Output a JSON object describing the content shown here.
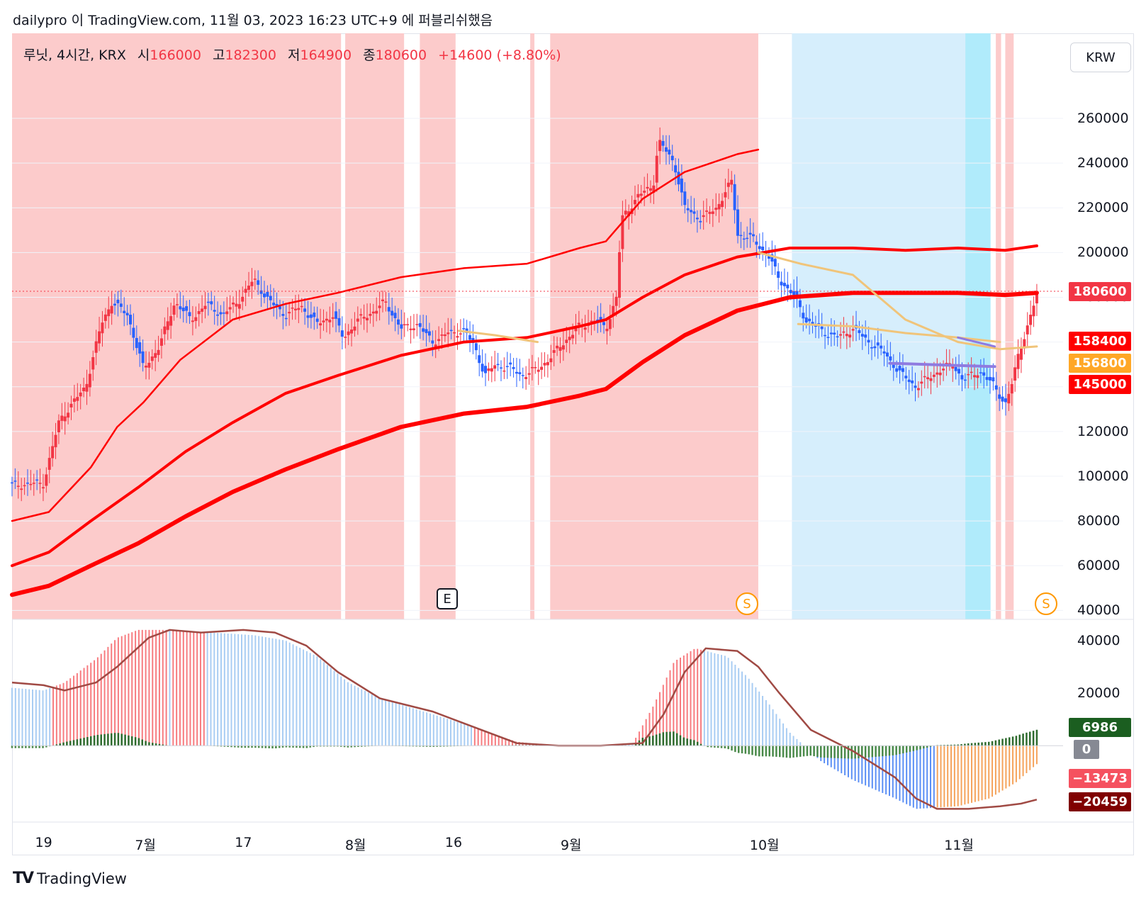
{
  "header": {
    "published": "dailypro 이 TradingView.com, 11월 03, 2023 16:23 UTC+9 에 퍼블리쉬했음",
    "symbol": "루닛, 4시간, KRX",
    "open_label": "시",
    "open": "166000",
    "high_label": "고",
    "high": "182300",
    "low_label": "저",
    "low": "164900",
    "close_label": "종",
    "close": "180600",
    "change": "+14600 (+8.80%)"
  },
  "currency": "KRW",
  "brand": "TradingView",
  "markers": {
    "earnings": "E",
    "split": "S"
  },
  "colors": {
    "up": "#f23645",
    "down": "#2962ff",
    "bg_red": "#fccbcb",
    "bg_blue": "#d6eefc",
    "bg_cyan": "#b0ebfb",
    "ma": "#ff0000",
    "ma_slow_gold": "#f0c47a",
    "ma_purple": "#8f7be0",
    "signal": "#a04a44",
    "hist_pos": "#2e6b2e",
    "hist_neg": "#4a8a4a"
  },
  "chart_data": [
    {
      "type": "candlestick",
      "title": "루닛, 4시간, KRX",
      "x_ticks": [
        "19",
        "7월",
        "17",
        "8월",
        "16",
        "9월",
        "10월",
        "11월"
      ],
      "y_ticks": [
        "40000",
        "60000",
        "80000",
        "100000",
        "120000",
        "140000",
        "160000",
        "180000",
        "200000",
        "220000",
        "240000",
        "260000"
      ],
      "ylim": [
        36000,
        298000
      ],
      "last_price": "180600",
      "price_labels": [
        {
          "value": "180600",
          "color": "#f23645"
        },
        {
          "value": "158400",
          "color": "#ff0000"
        },
        {
          "value": "156800",
          "color": "#ffa726"
        },
        {
          "value": "145000",
          "color": "#ff0000"
        }
      ],
      "close_path": [
        [
          0,
          96000
        ],
        [
          0.03,
          97000
        ],
        [
          0.045,
          125000
        ],
        [
          0.07,
          140000
        ],
        [
          0.085,
          168000
        ],
        [
          0.095,
          178000
        ],
        [
          0.11,
          172000
        ],
        [
          0.125,
          148000
        ],
        [
          0.14,
          158000
        ],
        [
          0.155,
          178000
        ],
        [
          0.17,
          170000
        ],
        [
          0.185,
          177000
        ],
        [
          0.2,
          172000
        ],
        [
          0.215,
          178000
        ],
        [
          0.23,
          188000
        ],
        [
          0.245,
          178000
        ],
        [
          0.26,
          172000
        ],
        [
          0.275,
          176000
        ],
        [
          0.29,
          168000
        ],
        [
          0.305,
          172000
        ],
        [
          0.315,
          162000
        ],
        [
          0.33,
          170000
        ],
        [
          0.345,
          174000
        ],
        [
          0.355,
          178000
        ],
        [
          0.37,
          166000
        ],
        [
          0.385,
          168000
        ],
        [
          0.4,
          160000
        ],
        [
          0.415,
          164000
        ],
        [
          0.43,
          165000
        ],
        [
          0.44,
          158000
        ],
        [
          0.45,
          145000
        ],
        [
          0.46,
          150000
        ],
        [
          0.475,
          148000
        ],
        [
          0.485,
          145000
        ],
        [
          0.5,
          148000
        ],
        [
          0.51,
          152000
        ],
        [
          0.525,
          160000
        ],
        [
          0.54,
          167000
        ],
        [
          0.555,
          170000
        ],
        [
          0.565,
          166000
        ],
        [
          0.575,
          180000
        ],
        [
          0.58,
          215000
        ],
        [
          0.595,
          225000
        ],
        [
          0.61,
          230000
        ],
        [
          0.615,
          250000
        ],
        [
          0.63,
          240000
        ],
        [
          0.64,
          220000
        ],
        [
          0.655,
          215000
        ],
        [
          0.67,
          220000
        ],
        [
          0.685,
          232000
        ],
        [
          0.69,
          208000
        ],
        [
          0.705,
          206000
        ],
        [
          0.72,
          198000
        ],
        [
          0.73,
          188000
        ],
        [
          0.745,
          180000
        ],
        [
          0.755,
          170000
        ],
        [
          0.77,
          165000
        ],
        [
          0.785,
          162000
        ],
        [
          0.8,
          166000
        ],
        [
          0.815,
          160000
        ],
        [
          0.83,
          155000
        ],
        [
          0.845,
          146000
        ],
        [
          0.86,
          140000
        ],
        [
          0.875,
          145000
        ],
        [
          0.885,
          148000
        ],
        [
          0.895,
          150000
        ],
        [
          0.905,
          143000
        ],
        [
          0.92,
          147000
        ],
        [
          0.935,
          140000
        ],
        [
          0.945,
          132000
        ],
        [
          0.952,
          142000
        ],
        [
          0.958,
          156000
        ],
        [
          0.965,
          165000
        ],
        [
          0.975,
          181000
        ]
      ],
      "background_regions": [
        {
          "from": 0.0,
          "to": 0.313,
          "color": "bg_red"
        },
        {
          "from": 0.317,
          "to": 0.373,
          "color": "bg_red"
        },
        {
          "from": 0.388,
          "to": 0.422,
          "color": "bg_red"
        },
        {
          "from": 0.493,
          "to": 0.497,
          "color": "bg_red"
        },
        {
          "from": 0.512,
          "to": 0.71,
          "color": "bg_red"
        },
        {
          "from": 0.742,
          "to": 0.907,
          "color": "bg_blue"
        },
        {
          "from": 0.907,
          "to": 0.931,
          "color": "bg_cyan"
        },
        {
          "from": 0.936,
          "to": 0.941,
          "color": "bg_red"
        },
        {
          "from": 0.945,
          "to": 0.953,
          "color": "bg_red"
        }
      ],
      "series": [
        {
          "color": "#ff0000",
          "width": 2.5,
          "values": [
            [
              0,
              80000
            ],
            [
              0.035,
              84000
            ],
            [
              0.075,
              104000
            ],
            [
              0.1,
              122000
            ],
            [
              0.125,
              133000
            ],
            [
              0.16,
              152000
            ],
            [
              0.21,
              170000
            ],
            [
              0.26,
              177000
            ],
            [
              0.31,
              182000
            ],
            [
              0.37,
              189000
            ],
            [
              0.43,
              193000
            ],
            [
              0.49,
              195000
            ],
            [
              0.54,
              202000
            ],
            [
              0.565,
              205000
            ],
            [
              0.6,
              224000
            ],
            [
              0.64,
              236000
            ],
            [
              0.69,
              244000
            ],
            [
              0.71,
              246000
            ]
          ]
        },
        {
          "color": "#ff0000",
          "width": 4,
          "values": [
            [
              0,
              60000
            ],
            [
              0.035,
              66000
            ],
            [
              0.075,
              80000
            ],
            [
              0.12,
              95000
            ],
            [
              0.165,
              111000
            ],
            [
              0.21,
              124000
            ],
            [
              0.26,
              137000
            ],
            [
              0.31,
              145000
            ],
            [
              0.37,
              154000
            ],
            [
              0.43,
              160000
            ],
            [
              0.49,
              162000
            ],
            [
              0.54,
              167000
            ],
            [
              0.565,
              170000
            ],
            [
              0.6,
              180000
            ],
            [
              0.64,
              190000
            ],
            [
              0.69,
              198000
            ],
            [
              0.74,
              202000
            ],
            [
              0.8,
              202000
            ],
            [
              0.85,
              201000
            ],
            [
              0.9,
              202000
            ],
            [
              0.945,
              201000
            ],
            [
              0.975,
              203000
            ]
          ]
        },
        {
          "color": "#ff0000",
          "width": 6,
          "values": [
            [
              0,
              47000
            ],
            [
              0.035,
              51000
            ],
            [
              0.075,
              60000
            ],
            [
              0.12,
              70000
            ],
            [
              0.165,
              82000
            ],
            [
              0.21,
              93000
            ],
            [
              0.26,
              103000
            ],
            [
              0.31,
              112000
            ],
            [
              0.37,
              122000
            ],
            [
              0.43,
              128000
            ],
            [
              0.49,
              131000
            ],
            [
              0.54,
              136000
            ],
            [
              0.565,
              139000
            ],
            [
              0.6,
              151000
            ],
            [
              0.64,
              163000
            ],
            [
              0.69,
              174000
            ],
            [
              0.74,
              180000
            ],
            [
              0.8,
              182000
            ],
            [
              0.85,
              182000
            ],
            [
              0.9,
              182000
            ],
            [
              0.945,
              181000
            ],
            [
              0.975,
              182000
            ]
          ]
        },
        {
          "color": "#f0c47a",
          "width": 3,
          "values": [
            [
              0.425,
              165000
            ],
            [
              0.46,
              163000
            ],
            [
              0.5,
              160000
            ]
          ]
        },
        {
          "color": "#f0c47a",
          "width": 3,
          "values": [
            [
              0.71,
              200000
            ],
            [
              0.75,
              195000
            ],
            [
              0.8,
              190000
            ],
            [
              0.85,
              170000
            ],
            [
              0.9,
              160000
            ],
            [
              0.94,
              156800
            ],
            [
              0.975,
              158000
            ]
          ]
        },
        {
          "color": "#f0c47a",
          "width": 3,
          "values": [
            [
              0.748,
              168000
            ],
            [
              0.8,
              167000
            ],
            [
              0.85,
              164000
            ],
            [
              0.9,
              162000
            ],
            [
              0.94,
              160000
            ]
          ]
        },
        {
          "color": "#8f7be0",
          "width": 4,
          "values": [
            [
              0.835,
              150500
            ],
            [
              0.87,
              150000
            ],
            [
              0.9,
              149500
            ],
            [
              0.935,
              149000
            ]
          ]
        },
        {
          "color": "#8f7be0",
          "width": 3,
          "values": [
            [
              0.9,
              162000
            ],
            [
              0.935,
              158000
            ]
          ]
        }
      ]
    },
    {
      "type": "histogram",
      "y_ticks": [
        "40000",
        "20000"
      ],
      "ylim": [
        -29000,
        48000
      ],
      "labels": [
        {
          "value": "6986",
          "color": "#1b5e20"
        },
        {
          "value": "0",
          "color": "#868993"
        },
        {
          "value": "−13473",
          "color": "#f5515f"
        },
        {
          "value": "−20459",
          "color": "#800000"
        }
      ],
      "macd_path": [
        [
          0,
          22000
        ],
        [
          0.03,
          21000
        ],
        [
          0.05,
          24000
        ],
        [
          0.08,
          33000
        ],
        [
          0.1,
          41000
        ],
        [
          0.12,
          44000
        ],
        [
          0.15,
          44000
        ],
        [
          0.19,
          43000
        ],
        [
          0.23,
          42000
        ],
        [
          0.26,
          40000
        ],
        [
          0.29,
          34000
        ],
        [
          0.32,
          24000
        ],
        [
          0.35,
          18000
        ],
        [
          0.4,
          12000
        ],
        [
          0.44,
          7000
        ],
        [
          0.48,
          1500
        ],
        [
          0.52,
          0
        ],
        [
          0.56,
          0
        ],
        [
          0.59,
          500
        ],
        [
          0.61,
          15000
        ],
        [
          0.63,
          32000
        ],
        [
          0.65,
          37000
        ],
        [
          0.68,
          34000
        ],
        [
          0.7,
          26000
        ],
        [
          0.72,
          16000
        ],
        [
          0.74,
          5000
        ],
        [
          0.77,
          -6000
        ],
        [
          0.8,
          -13000
        ],
        [
          0.84,
          -20000
        ],
        [
          0.86,
          -24000
        ],
        [
          0.9,
          -23000
        ],
        [
          0.93,
          -20000
        ],
        [
          0.955,
          -14000
        ],
        [
          0.975,
          -7000
        ]
      ],
      "signal_path": [
        [
          0,
          24000
        ],
        [
          0.03,
          23000
        ],
        [
          0.05,
          21000
        ],
        [
          0.08,
          24000
        ],
        [
          0.1,
          30000
        ],
        [
          0.13,
          41000
        ],
        [
          0.15,
          44000
        ],
        [
          0.18,
          43000
        ],
        [
          0.22,
          44000
        ],
        [
          0.25,
          43000
        ],
        [
          0.28,
          38000
        ],
        [
          0.31,
          28000
        ],
        [
          0.35,
          18000
        ],
        [
          0.4,
          13000
        ],
        [
          0.44,
          7000
        ],
        [
          0.48,
          1000
        ],
        [
          0.52,
          0
        ],
        [
          0.56,
          0
        ],
        [
          0.6,
          1000
        ],
        [
          0.62,
          12000
        ],
        [
          0.64,
          28000
        ],
        [
          0.66,
          37000
        ],
        [
          0.69,
          36000
        ],
        [
          0.71,
          30000
        ],
        [
          0.73,
          20000
        ],
        [
          0.76,
          6000
        ],
        [
          0.8,
          -2000
        ],
        [
          0.84,
          -12000
        ],
        [
          0.86,
          -20000
        ],
        [
          0.88,
          -24000
        ],
        [
          0.91,
          -24000
        ],
        [
          0.94,
          -23000
        ],
        [
          0.96,
          -22000
        ],
        [
          0.975,
          -20459
        ]
      ]
    }
  ]
}
